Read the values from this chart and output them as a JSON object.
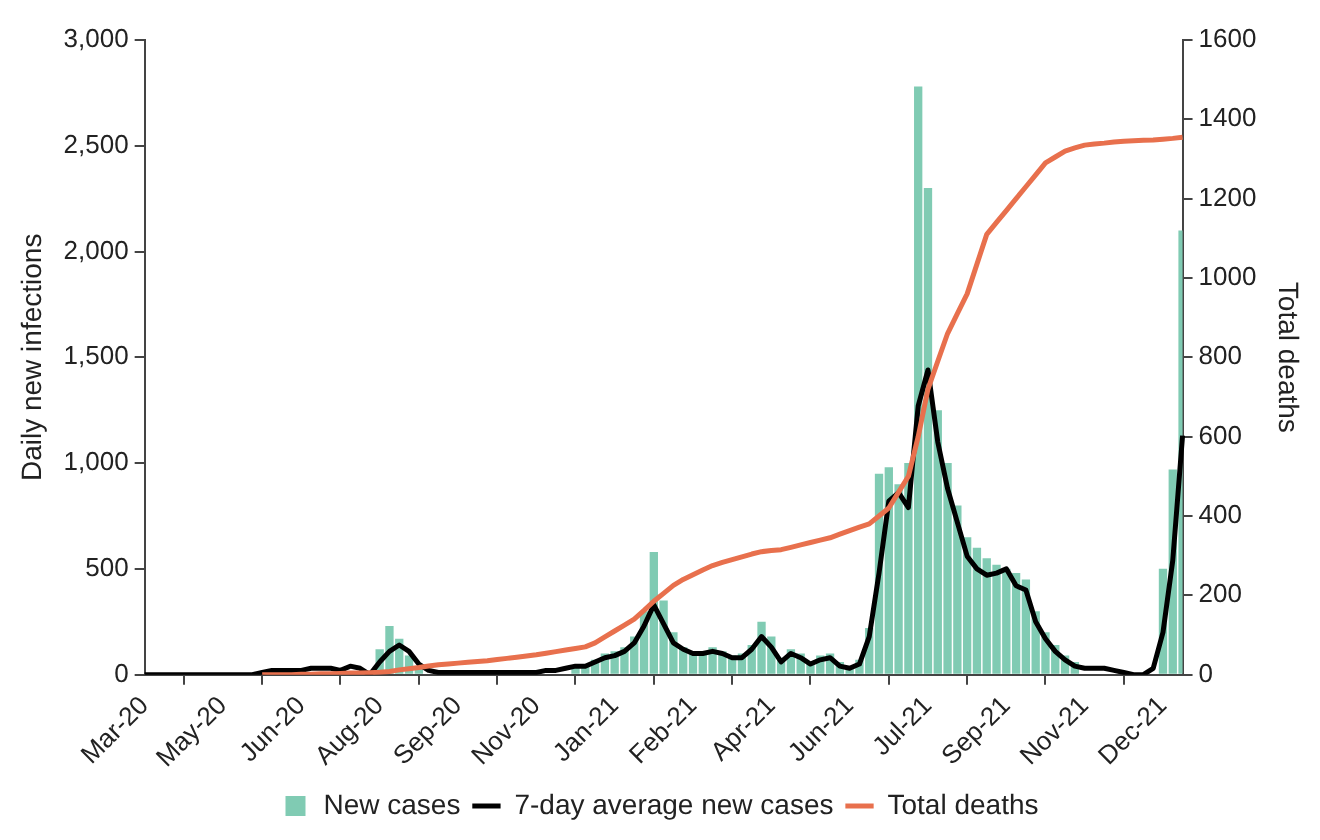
{
  "chart_data": {
    "type": "bar",
    "ylabel": "Daily new infections",
    "y2label": "Total deaths",
    "categories": [
      "Mar-20",
      null,
      null,
      null,
      null,
      null,
      null,
      null,
      "May-20",
      null,
      null,
      null,
      null,
      null,
      null,
      null,
      "Jun-20",
      null,
      null,
      null,
      null,
      null,
      null,
      null,
      "Aug-20",
      null,
      null,
      null,
      null,
      null,
      null,
      null,
      "Sep-20",
      null,
      null,
      null,
      null,
      null,
      null,
      null,
      "Nov-20",
      null,
      null,
      null,
      null,
      null,
      null,
      null,
      "Jan-21",
      null,
      null,
      null,
      null,
      null,
      null,
      null,
      "Feb-21",
      null,
      null,
      null,
      null,
      null,
      null,
      null,
      "Apr-21",
      null,
      null,
      null,
      null,
      null,
      null,
      null,
      "Jun-21",
      null,
      null,
      null,
      null,
      null,
      null,
      null,
      "Jul-21",
      null,
      null,
      null,
      null,
      null,
      null,
      null,
      "Sep-21",
      null,
      null,
      null,
      null,
      null,
      null,
      null,
      "Nov-21",
      null,
      null,
      null,
      null,
      null,
      null,
      null,
      "Dec-21",
      null,
      null
    ],
    "series": [
      {
        "name": "New cases",
        "color": "#80cbb3",
        "values": [
          null,
          null,
          null,
          null,
          null,
          null,
          null,
          null,
          null,
          null,
          null,
          null,
          null,
          null,
          null,
          null,
          null,
          null,
          null,
          null,
          null,
          null,
          null,
          null,
          120,
          230,
          170,
          90,
          40,
          null,
          null,
          null,
          null,
          null,
          null,
          null,
          null,
          null,
          null,
          null,
          null,
          null,
          null,
          null,
          40,
          50,
          70,
          100,
          110,
          130,
          180,
          300,
          580,
          350,
          200,
          130,
          110,
          100,
          130,
          110,
          90,
          100,
          140,
          250,
          180,
          80,
          120,
          100,
          60,
          90,
          100,
          60,
          40,
          70,
          220,
          950,
          980,
          900,
          1000,
          2780,
          2300,
          1250,
          1000,
          800,
          650,
          600,
          550,
          520,
          500,
          480,
          450,
          300,
          200,
          140,
          90,
          60,
          null,
          null,
          null,
          null,
          null,
          null,
          null,
          null,
          500,
          970,
          2100
        ]
      },
      {
        "name": "7-day average new cases",
        "type": "line",
        "color": "#000000",
        "values": [
          0,
          0,
          0,
          0,
          0,
          0,
          0,
          0,
          0,
          0,
          0,
          0,
          10,
          20,
          20,
          20,
          20,
          30,
          30,
          30,
          20,
          40,
          30,
          0,
          60,
          110,
          140,
          110,
          50,
          20,
          10,
          10,
          10,
          10,
          10,
          10,
          10,
          10,
          10,
          10,
          10,
          20,
          20,
          30,
          40,
          40,
          60,
          80,
          90,
          110,
          150,
          230,
          330,
          240,
          150,
          120,
          100,
          100,
          110,
          100,
          80,
          80,
          120,
          180,
          130,
          60,
          100,
          80,
          50,
          70,
          80,
          40,
          30,
          50,
          180,
          480,
          820,
          860,
          790,
          1270,
          1440,
          1100,
          880,
          720,
          560,
          500,
          470,
          480,
          500,
          420,
          400,
          250,
          170,
          110,
          70,
          40,
          30,
          30,
          30,
          20,
          10,
          0,
          0,
          30,
          200,
          540,
          1130
        ]
      },
      {
        "name": "Total deaths",
        "type": "line",
        "axis": "y2",
        "color": "#e8704d",
        "values": [
          null,
          null,
          null,
          null,
          null,
          null,
          null,
          null,
          null,
          null,
          null,
          null,
          0,
          0,
          0,
          0,
          1,
          1,
          2,
          2,
          3,
          4,
          4,
          5,
          6,
          8,
          12,
          15,
          18,
          22,
          25,
          27,
          29,
          31,
          33,
          35,
          38,
          41,
          44,
          47,
          50,
          54,
          58,
          62,
          66,
          70,
          80,
          95,
          110,
          125,
          140,
          162,
          185,
          205,
          225,
          240,
          252,
          264,
          275,
          283,
          290,
          297,
          304,
          310,
          313,
          315,
          321,
          327,
          333,
          339,
          345,
          354,
          363,
          372,
          380,
          400,
          420,
          460,
          500,
          600,
          720,
          790,
          860,
          910,
          960,
          1035,
          1110,
          1140,
          1170,
          1200,
          1230,
          1260,
          1290,
          1305,
          1320,
          1328,
          1335,
          1338,
          1340,
          1343,
          1345,
          1346,
          1347,
          1348,
          1350,
          1352,
          1355
        ]
      }
    ],
    "ylim": [
      0,
      3000
    ],
    "yticks": [
      {
        "value": 0,
        "label": "0"
      },
      {
        "value": 500,
        "label": "500"
      },
      {
        "value": 1000,
        "label": "1,000"
      },
      {
        "value": 1500,
        "label": "1,500"
      },
      {
        "value": 2000,
        "label": "2,000"
      },
      {
        "value": 2500,
        "label": "2,500"
      },
      {
        "value": 3000,
        "label": "3,000"
      }
    ],
    "y2lim": [
      0,
      1600
    ],
    "y2ticks": [
      0,
      200,
      400,
      600,
      800,
      1000,
      1200,
      1400,
      1600
    ],
    "grid": false,
    "legend": "bottom",
    "marker": "none",
    "line_style": "solid"
  }
}
